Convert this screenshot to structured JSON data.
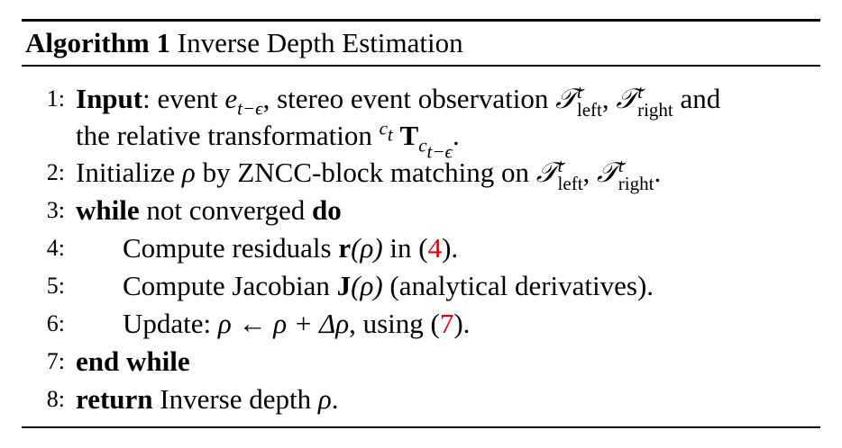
{
  "algorithm": {
    "label": "Algorithm 1",
    "title": "Inverse Depth Estimation"
  },
  "lines": [
    {
      "num": "1:",
      "input_kw": "Input",
      "input_rest": ": event ",
      "event_sym": "e",
      "event_sub": "t−ϵ",
      "part2": ", stereo event observation ",
      "T": "𝒯",
      "sup": "t",
      "sub_left": "left",
      "sub_right": "right",
      "comma": ", ",
      "and": " and"
    },
    {
      "cont": "the relative transformation ",
      "pre_sup": "c",
      "pre_sup_sub": "t",
      "T": "T",
      "sub": "c",
      "subsub": "t−ϵ",
      "end": "."
    },
    {
      "num": "2:",
      "text": "Initialize ",
      "rho": "ρ",
      "text2": " by ZNCC-block matching on ",
      "sup": "t",
      "sub_left": "left",
      "sub_right": "right",
      "T": "𝒯",
      "comma": ", ",
      "end": "."
    },
    {
      "num": "3:",
      "kw1": "while",
      "mid": " not converged ",
      "kw2": "do"
    },
    {
      "num": "4:",
      "text": "Compute residuals ",
      "r": "r",
      "arg": "(ρ)",
      "in": " in (",
      "ref": "4",
      "close": ")."
    },
    {
      "num": "5:",
      "text": "Compute Jacobian ",
      "J": "J",
      "arg": "(ρ)",
      "rest": " (analytical derivatives)."
    },
    {
      "num": "6:",
      "text": "Update: ",
      "expr": "ρ ← ρ + Δρ",
      "using": ", using (",
      "ref": "7",
      "close": ")."
    },
    {
      "num": "7:",
      "kw": "end while"
    },
    {
      "num": "8:",
      "kw": "return",
      "rest": " Inverse depth ",
      "rho": "ρ",
      "end": "."
    }
  ]
}
